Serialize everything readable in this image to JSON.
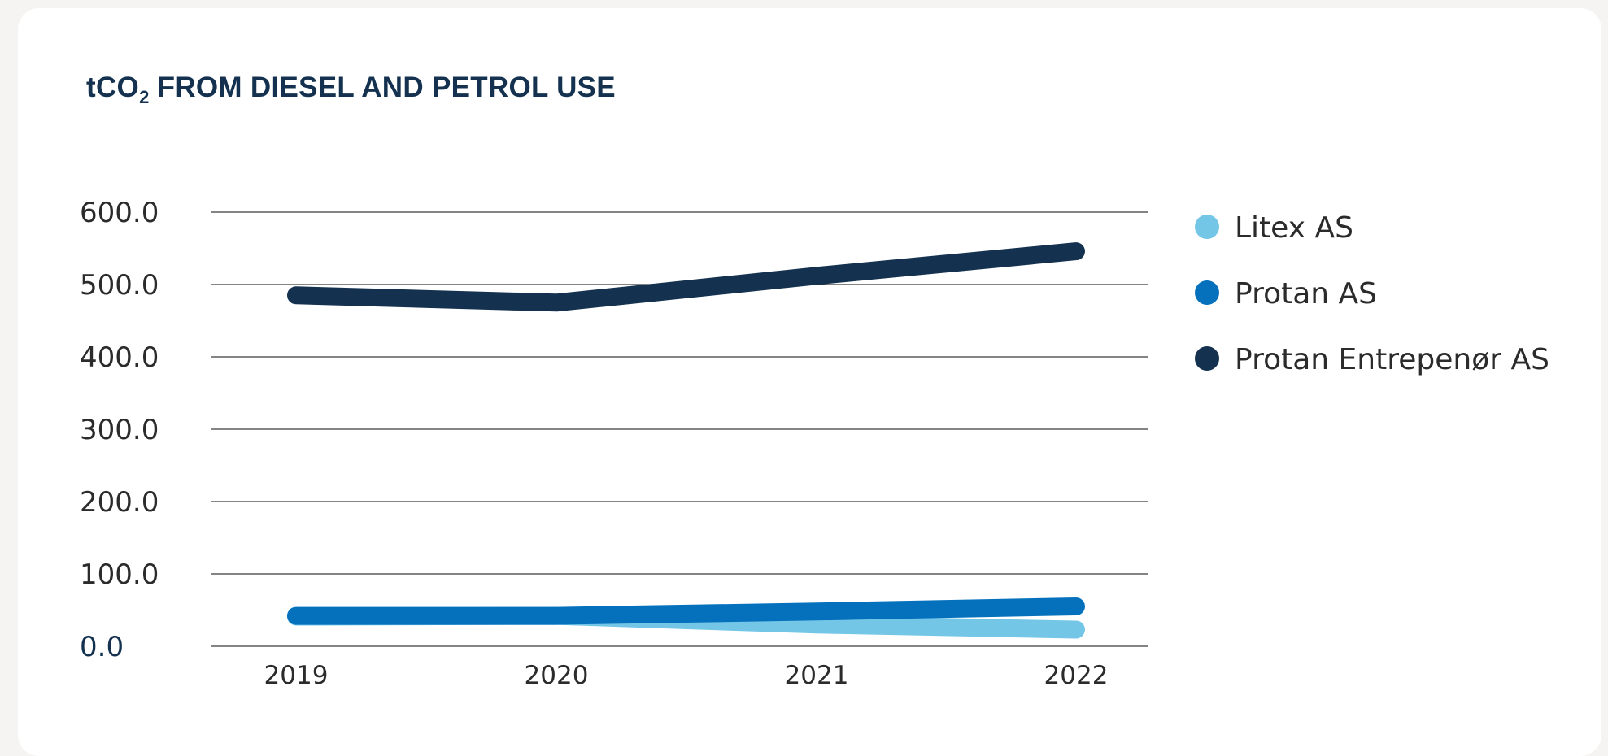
{
  "colors": {
    "Litex AS": "#74c6e6",
    "Protan AS": "#0571bd",
    "Protan Entrepenør AS": "#14324f"
  },
  "title": {
    "main": "tCO",
    "sub": "2",
    "rest": " FROM DIESEL AND PETROL USE"
  },
  "chart_data": {
    "type": "line",
    "title": "tCO2 FROM DIESEL AND PETROL USE",
    "xlabel": "",
    "ylabel": "",
    "x": [
      "2019",
      "2020",
      "2021",
      "2022"
    ],
    "ylim": [
      0,
      600
    ],
    "yticks": [
      0,
      100,
      200,
      300,
      400,
      500,
      600
    ],
    "ytick_labels": [
      "0.0",
      "100.0",
      "200.0",
      "300.0",
      "400.0",
      "500.0",
      "600.0"
    ],
    "grid": "horizontal",
    "legend": "right",
    "series": [
      {
        "name": "Litex AS",
        "values": [
          41,
          42,
          30,
          23
        ]
      },
      {
        "name": "Protan AS",
        "values": [
          42,
          42,
          48,
          55
        ]
      },
      {
        "name": "Protan Entrepenør AS",
        "values": [
          485,
          475,
          512,
          546
        ]
      }
    ]
  }
}
